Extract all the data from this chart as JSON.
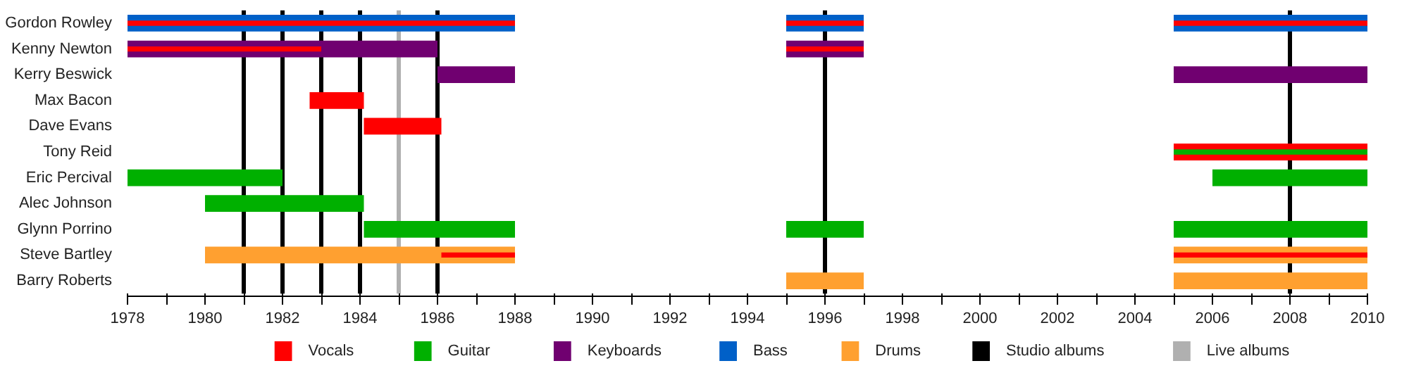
{
  "chart_data": {
    "type": "bar",
    "orientation": "horizontal",
    "categories": [
      "Gordon Rowley",
      "Kenny Newton",
      "Kerry Beswick",
      "Max Bacon",
      "Dave Evans",
      "Tony Reid",
      "Eric Percival",
      "Alec Johnson",
      "Glynn Porrino",
      "Steve Bartley",
      "Barry Roberts"
    ],
    "series": [
      {
        "name": "Vocals",
        "color": "#ff0000",
        "base": [
          null,
          null,
          null,
          1982.7,
          1984.1,
          2005,
          null,
          null,
          null,
          null,
          null
        ],
        "values": [
          null,
          null,
          null,
          1.4,
          2,
          5,
          null,
          null,
          null,
          null,
          null
        ]
      },
      {
        "name": "Guitar",
        "color": "#00b000",
        "base": [
          null,
          null,
          null,
          null,
          null,
          null,
          1978,
          1980,
          1984.1,
          null,
          null
        ],
        "values": [
          null,
          null,
          null,
          null,
          null,
          null,
          4,
          4.1,
          3.9,
          null,
          null
        ]
      },
      {
        "name": "Keyboards",
        "color": "#700070",
        "base": [
          null,
          1978,
          1986,
          null,
          null,
          null,
          null,
          null,
          null,
          null,
          null
        ],
        "values": [
          null,
          8,
          2,
          null,
          null,
          null,
          null,
          null,
          null,
          null,
          null
        ]
      },
      {
        "name": "Bass",
        "color": "#0060c8",
        "base": [
          1978,
          null,
          null,
          null,
          null,
          null,
          null,
          null,
          null,
          null,
          null
        ],
        "values": [
          10,
          null,
          null,
          null,
          null,
          null,
          null,
          null,
          null,
          null,
          null
        ]
      },
      {
        "name": "Drums",
        "color": "#ffa030",
        "base": [
          null,
          null,
          null,
          null,
          null,
          null,
          null,
          null,
          null,
          1980,
          1995
        ],
        "values": [
          null,
          null,
          null,
          null,
          null,
          null,
          null,
          null,
          null,
          8,
          2
        ]
      },
      {
        "color": "#00b000",
        "base": [
          null,
          null,
          null,
          null,
          null,
          null,
          2006,
          null,
          1995,
          null,
          null
        ],
        "values": [
          null,
          null,
          null,
          null,
          null,
          null,
          4,
          null,
          2,
          null,
          null
        ]
      },
      {
        "color": "#00b000",
        "base": [
          null,
          null,
          null,
          null,
          null,
          null,
          null,
          null,
          2005,
          null,
          null
        ],
        "values": [
          null,
          null,
          null,
          null,
          null,
          null,
          null,
          null,
          5,
          null,
          null
        ]
      },
      {
        "color": "#700070",
        "base": [
          null,
          1995,
          2005,
          null,
          null,
          null,
          null,
          null,
          null,
          null,
          null
        ],
        "values": [
          null,
          2,
          5,
          null,
          null,
          null,
          null,
          null,
          null,
          null,
          null
        ]
      },
      {
        "color": "#0060c8",
        "base": [
          1995,
          null,
          null,
          null,
          null,
          null,
          null,
          null,
          null,
          null,
          null
        ],
        "values": [
          2,
          null,
          null,
          null,
          null,
          null,
          null,
          null,
          null,
          null,
          null
        ]
      },
      {
        "color": "#0060c8",
        "base": [
          2005,
          null,
          null,
          null,
          null,
          null,
          null,
          null,
          null,
          null,
          null
        ],
        "values": [
          5,
          null,
          null,
          null,
          null,
          null,
          null,
          null,
          null,
          null,
          null
        ]
      },
      {
        "color": "#ffa030",
        "base": [
          null,
          null,
          null,
          null,
          null,
          null,
          null,
          null,
          null,
          2005,
          2005
        ],
        "values": [
          null,
          null,
          null,
          null,
          null,
          null,
          null,
          null,
          null,
          5,
          5
        ]
      },
      {
        "color": "#ff0000",
        "base": [
          1978,
          1978,
          null,
          null,
          null,
          null,
          null,
          null,
          null,
          1986.1,
          null
        ],
        "values": [
          10,
          5,
          null,
          null,
          null,
          null,
          null,
          null,
          null,
          1.9,
          null
        ]
      },
      {
        "color": "#ff0000",
        "base": [
          1995,
          1995,
          null,
          null,
          null,
          null,
          null,
          null,
          null,
          2005,
          null
        ],
        "values": [
          2,
          2,
          null,
          null,
          null,
          null,
          null,
          null,
          null,
          5,
          null
        ]
      },
      {
        "color": "#ff0000",
        "base": [
          2005,
          null,
          null,
          null,
          null,
          null,
          null,
          null,
          null,
          null,
          null
        ],
        "values": [
          5,
          null,
          null,
          null,
          null,
          null,
          null,
          null,
          null,
          null,
          null
        ]
      },
      {
        "color": "#00b000",
        "base": [
          null,
          null,
          null,
          null,
          null,
          2005,
          null,
          null,
          null,
          null,
          null
        ],
        "values": [
          null,
          null,
          null,
          null,
          null,
          5,
          null,
          null,
          null,
          null,
          null
        ]
      }
    ],
    "ref_lines": [
      {
        "axis": "x",
        "value": 1981,
        "label": "Studio albums",
        "color": "#000000"
      },
      {
        "axis": "x",
        "value": 1982,
        "color": "#000000"
      },
      {
        "axis": "x",
        "value": 1983,
        "color": "#000000"
      },
      {
        "axis": "x",
        "value": 1984,
        "color": "#000000"
      },
      {
        "axis": "x",
        "value": 1986,
        "color": "#000000"
      },
      {
        "axis": "x",
        "value": 1996,
        "color": "#000000"
      },
      {
        "axis": "x",
        "value": 2008,
        "color": "#000000"
      },
      {
        "axis": "x",
        "value": 1985,
        "label": "Live albums",
        "color": "#b0b0b0"
      }
    ],
    "xlim": [
      1978,
      2010
    ],
    "xticks": [
      1978,
      {
        "value": 1979,
        "label": null
      },
      1980,
      {
        "value": 1981,
        "label": null
      },
      1982,
      {
        "value": 1983,
        "label": null
      },
      1984,
      {
        "value": 1985,
        "label": null
      },
      1986,
      {
        "value": 1987,
        "label": null
      },
      1988,
      {
        "value": 1989,
        "label": null
      },
      1990,
      {
        "value": 1991,
        "label": null
      },
      1992,
      {
        "value": 1993,
        "label": null
      },
      1994,
      {
        "value": 1995,
        "label": null
      },
      1996,
      {
        "value": 1997,
        "label": null
      },
      1998,
      {
        "value": 1999,
        "label": null
      },
      2000,
      {
        "value": 2001,
        "label": null
      },
      2002,
      {
        "value": 2003,
        "label": null
      },
      2004,
      {
        "value": 2005,
        "label": null
      },
      2006,
      {
        "value": 2007,
        "label": null
      },
      2008,
      {
        "value": 2009,
        "label": null
      },
      2010
    ],
    "grid": false,
    "legend": "bottom"
  }
}
